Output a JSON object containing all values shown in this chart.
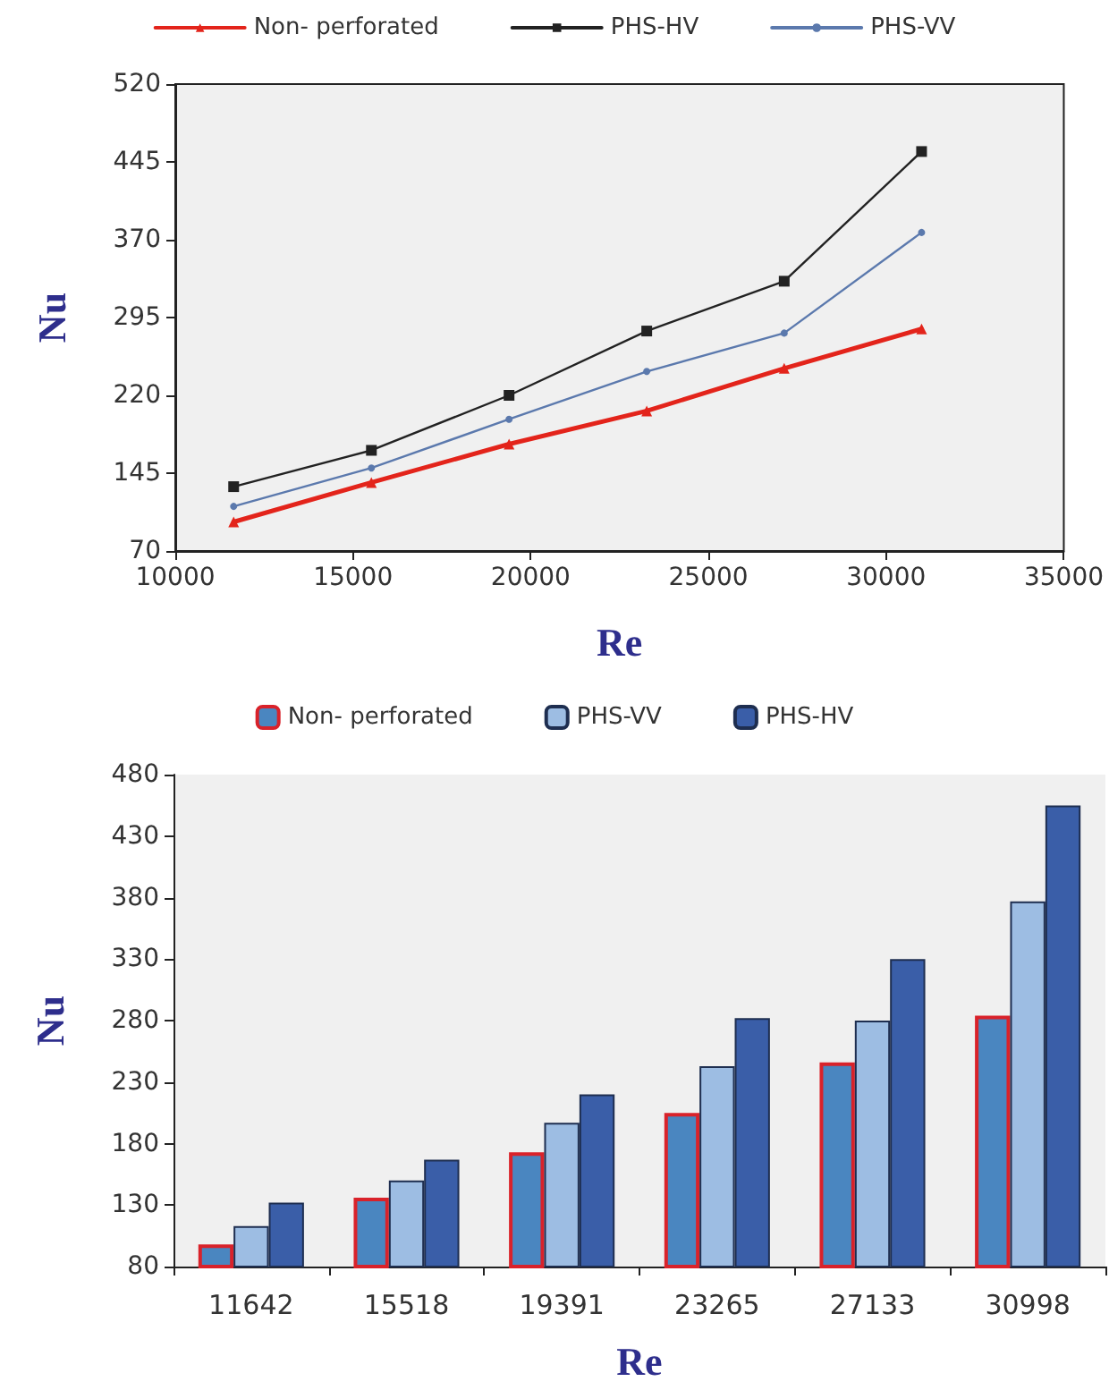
{
  "chart_data": [
    {
      "type": "line",
      "xlabel": "Re",
      "ylabel": "Nu",
      "x": [
        11642,
        15518,
        19391,
        23265,
        27133,
        30998
      ],
      "xlim": [
        10000,
        35000
      ],
      "xticks": [
        10000,
        15000,
        20000,
        25000,
        30000,
        35000
      ],
      "ylim": [
        70,
        520
      ],
      "yticks": [
        70,
        145,
        220,
        295,
        370,
        445,
        520
      ],
      "grid": false,
      "legend": "top",
      "series": [
        {
          "name": "Non- perforated",
          "color": "#e3241b",
          "marker": "triangle",
          "values": [
            98,
            136,
            173,
            205,
            246,
            284
          ]
        },
        {
          "name": "PHS-HV",
          "color": "#222222",
          "marker": "square",
          "values": [
            132,
            167,
            220,
            282,
            330,
            455
          ]
        },
        {
          "name": "PHS-VV",
          "color": "#5b79ad",
          "marker": "circle",
          "values": [
            113,
            150,
            197,
            243,
            280,
            377
          ]
        }
      ]
    },
    {
      "type": "bar",
      "xlabel": "Re",
      "ylabel": "Nu",
      "categories": [
        "11642",
        "15518",
        "19391",
        "23265",
        "27133",
        "30998"
      ],
      "ylim": [
        80,
        480
      ],
      "yticks": [
        80,
        130,
        180,
        230,
        280,
        330,
        380,
        430,
        480
      ],
      "grid": false,
      "legend": "top",
      "series": [
        {
          "name": "Non- perforated",
          "color": "#4a86c0",
          "values": [
            98,
            136,
            173,
            205,
            246,
            284
          ]
        },
        {
          "name": "PHS-VV",
          "color": "#9dbde3",
          "values": [
            113,
            150,
            197,
            243,
            280,
            377
          ]
        },
        {
          "name": "PHS-HV",
          "color": "#3a5ea8",
          "values": [
            132,
            167,
            220,
            282,
            330,
            455
          ]
        }
      ]
    }
  ]
}
